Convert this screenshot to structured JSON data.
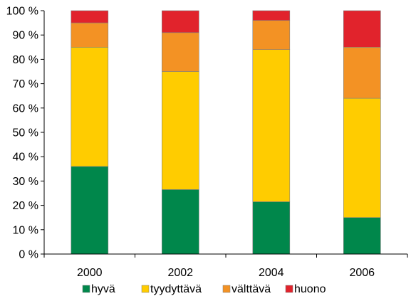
{
  "chart_data": {
    "type": "bar",
    "stacked": true,
    "categories": [
      "2000",
      "2002",
      "2004",
      "2006"
    ],
    "series": [
      {
        "name": "hyvä",
        "color": "#00874B",
        "values": [
          36,
          26.5,
          21.5,
          15
        ]
      },
      {
        "name": "tyydyttävä",
        "color": "#FFCC00",
        "values": [
          49,
          48.5,
          62.5,
          49
        ]
      },
      {
        "name": "välttävä",
        "color": "#F39224",
        "values": [
          10,
          16,
          12,
          21
        ]
      },
      {
        "name": "huono",
        "color": "#E1232C",
        "values": [
          5,
          9,
          4,
          15
        ]
      }
    ],
    "title": "",
    "xlabel": "",
    "ylabel": "",
    "ylim": [
      0,
      100
    ],
    "yticks": [
      0,
      10,
      20,
      30,
      40,
      50,
      60,
      70,
      80,
      90,
      100
    ],
    "ytick_labels": [
      "0 %",
      "10 %",
      "20 %",
      "30 %",
      "40 %",
      "50 %",
      "60 %",
      "70 %",
      "80 %",
      "90 %",
      "100 %"
    ],
    "grid": false,
    "legend_position": "bottom"
  }
}
